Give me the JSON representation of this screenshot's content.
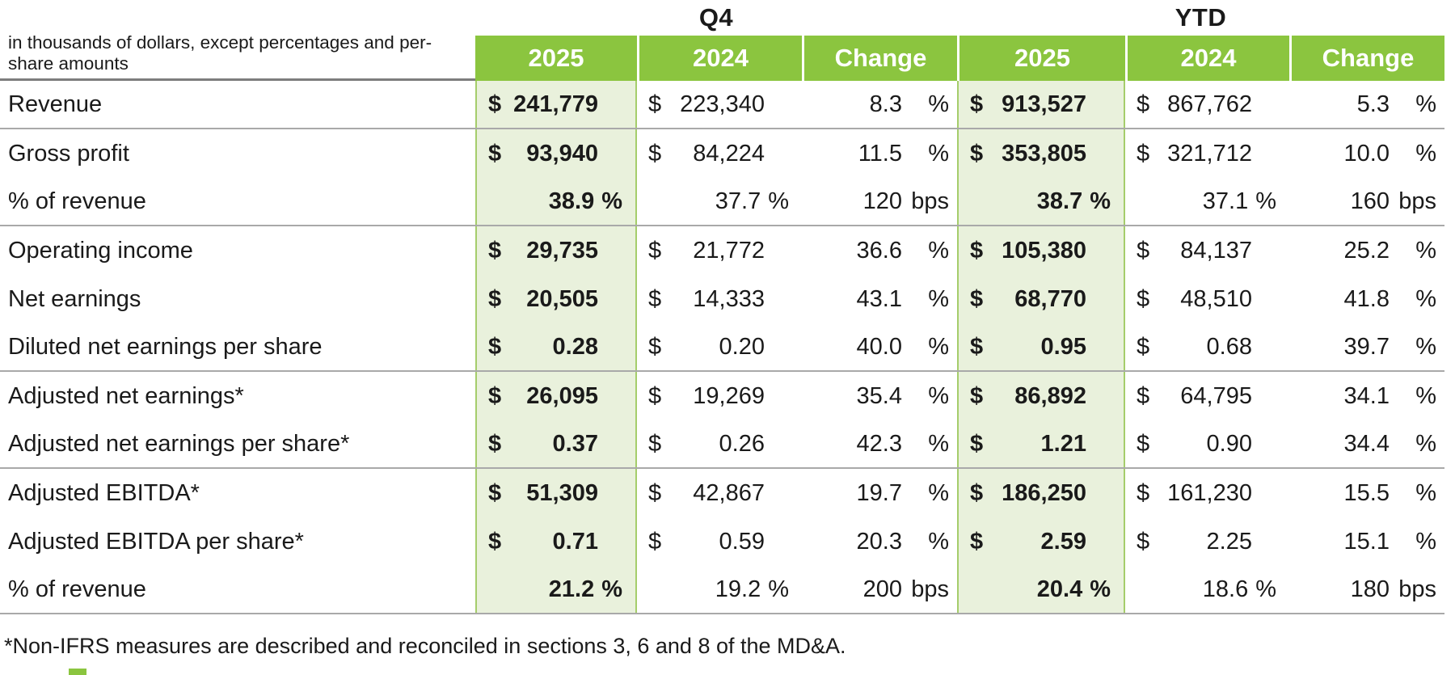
{
  "titles": {
    "q4": "Q4",
    "ytd": "YTD"
  },
  "unit_note": "in thousands of dollars, except percentages and per-share amounts",
  "column_headers": {
    "q4": [
      "2025",
      "2024",
      "Change"
    ],
    "ytd": [
      "2025",
      "2024",
      "Change"
    ]
  },
  "colors": {
    "header_green": "#8bc53f",
    "tint_green": "#e9f1dc",
    "band_border_green": "#a5cd6b"
  },
  "rows": [
    {
      "label": "Revenue",
      "separator_below": true,
      "cells": [
        {
          "type": "money",
          "pre": "$",
          "val": "241,779"
        },
        {
          "type": "money",
          "pre": "$",
          "val": "223,340"
        },
        {
          "type": "change",
          "val": "8.3",
          "unit": "%"
        },
        {
          "type": "money",
          "pre": "$",
          "val": "913,527"
        },
        {
          "type": "money",
          "pre": "$",
          "val": "867,762"
        },
        {
          "type": "change",
          "val": "5.3",
          "unit": "%"
        }
      ]
    },
    {
      "label": "Gross profit",
      "separator_below": false,
      "cells": [
        {
          "type": "money",
          "pre": "$",
          "val": "93,940"
        },
        {
          "type": "money",
          "pre": "$",
          "val": "84,224"
        },
        {
          "type": "change",
          "val": "11.5",
          "unit": "%"
        },
        {
          "type": "money",
          "pre": "$",
          "val": "353,805"
        },
        {
          "type": "money",
          "pre": "$",
          "val": "321,712"
        },
        {
          "type": "change",
          "val": "10.0",
          "unit": "%"
        }
      ]
    },
    {
      "label": "% of revenue",
      "separator_below": true,
      "cells": [
        {
          "type": "pct",
          "val": "38.9",
          "unit": "%"
        },
        {
          "type": "pct",
          "val": "37.7",
          "unit": "%"
        },
        {
          "type": "change",
          "val": "120",
          "unit": "bps"
        },
        {
          "type": "pct",
          "val": "38.7",
          "unit": "%"
        },
        {
          "type": "pct",
          "val": "37.1",
          "unit": "%"
        },
        {
          "type": "change",
          "val": "160",
          "unit": "bps"
        }
      ]
    },
    {
      "label": "Operating income",
      "separator_below": false,
      "cells": [
        {
          "type": "money",
          "pre": "$",
          "val": "29,735"
        },
        {
          "type": "money",
          "pre": "$",
          "val": "21,772"
        },
        {
          "type": "change",
          "val": "36.6",
          "unit": "%"
        },
        {
          "type": "money",
          "pre": "$",
          "val": "105,380"
        },
        {
          "type": "money",
          "pre": "$",
          "val": "84,137"
        },
        {
          "type": "change",
          "val": "25.2",
          "unit": "%"
        }
      ]
    },
    {
      "label": "Net earnings",
      "separator_below": false,
      "cells": [
        {
          "type": "money",
          "pre": "$",
          "val": "20,505"
        },
        {
          "type": "money",
          "pre": "$",
          "val": "14,333"
        },
        {
          "type": "change",
          "val": "43.1",
          "unit": "%"
        },
        {
          "type": "money",
          "pre": "$",
          "val": "68,770"
        },
        {
          "type": "money",
          "pre": "$",
          "val": "48,510"
        },
        {
          "type": "change",
          "val": "41.8",
          "unit": "%"
        }
      ]
    },
    {
      "label": "Diluted net earnings per share",
      "separator_below": true,
      "cells": [
        {
          "type": "money",
          "pre": "$",
          "val": "0.28"
        },
        {
          "type": "money",
          "pre": "$",
          "val": "0.20"
        },
        {
          "type": "change",
          "val": "40.0",
          "unit": "%"
        },
        {
          "type": "money",
          "pre": "$",
          "val": "0.95"
        },
        {
          "type": "money",
          "pre": "$",
          "val": "0.68"
        },
        {
          "type": "change",
          "val": "39.7",
          "unit": "%"
        }
      ]
    },
    {
      "label": "Adjusted net earnings*",
      "separator_below": false,
      "cells": [
        {
          "type": "money",
          "pre": "$",
          "val": "26,095"
        },
        {
          "type": "money",
          "pre": "$",
          "val": "19,269"
        },
        {
          "type": "change",
          "val": "35.4",
          "unit": "%"
        },
        {
          "type": "money",
          "pre": "$",
          "val": "86,892"
        },
        {
          "type": "money",
          "pre": "$",
          "val": "64,795"
        },
        {
          "type": "change",
          "val": "34.1",
          "unit": "%"
        }
      ]
    },
    {
      "label": "Adjusted net earnings per share*",
      "separator_below": true,
      "cells": [
        {
          "type": "money",
          "pre": "$",
          "val": "0.37"
        },
        {
          "type": "money",
          "pre": "$",
          "val": "0.26"
        },
        {
          "type": "change",
          "val": "42.3",
          "unit": "%"
        },
        {
          "type": "money",
          "pre": "$",
          "val": "1.21"
        },
        {
          "type": "money",
          "pre": "$",
          "val": "0.90"
        },
        {
          "type": "change",
          "val": "34.4",
          "unit": "%"
        }
      ]
    },
    {
      "label": "Adjusted EBITDA*",
      "separator_below": false,
      "cells": [
        {
          "type": "money",
          "pre": "$",
          "val": "51,309"
        },
        {
          "type": "money",
          "pre": "$",
          "val": "42,867"
        },
        {
          "type": "change",
          "val": "19.7",
          "unit": "%"
        },
        {
          "type": "money",
          "pre": "$",
          "val": "186,250"
        },
        {
          "type": "money",
          "pre": "$",
          "val": "161,230"
        },
        {
          "type": "change",
          "val": "15.5",
          "unit": "%"
        }
      ]
    },
    {
      "label": "Adjusted EBITDA per share*",
      "separator_below": false,
      "cells": [
        {
          "type": "money",
          "pre": "$",
          "val": "0.71"
        },
        {
          "type": "money",
          "pre": "$",
          "val": "0.59"
        },
        {
          "type": "change",
          "val": "20.3",
          "unit": "%"
        },
        {
          "type": "money",
          "pre": "$",
          "val": "2.59"
        },
        {
          "type": "money",
          "pre": "$",
          "val": "2.25"
        },
        {
          "type": "change",
          "val": "15.1",
          "unit": "%"
        }
      ]
    },
    {
      "label": "% of revenue",
      "separator_below": true,
      "cells": [
        {
          "type": "pct",
          "val": "21.2",
          "unit": "%"
        },
        {
          "type": "pct",
          "val": "19.2",
          "unit": "%"
        },
        {
          "type": "change",
          "val": "200",
          "unit": "bps"
        },
        {
          "type": "pct",
          "val": "20.4",
          "unit": "%"
        },
        {
          "type": "pct",
          "val": "18.6",
          "unit": "%"
        },
        {
          "type": "change",
          "val": "180",
          "unit": "bps"
        }
      ]
    }
  ],
  "footnote": "*Non-IFRS measures are described and reconciled in sections 3, 6 and 8 of the MD&A."
}
